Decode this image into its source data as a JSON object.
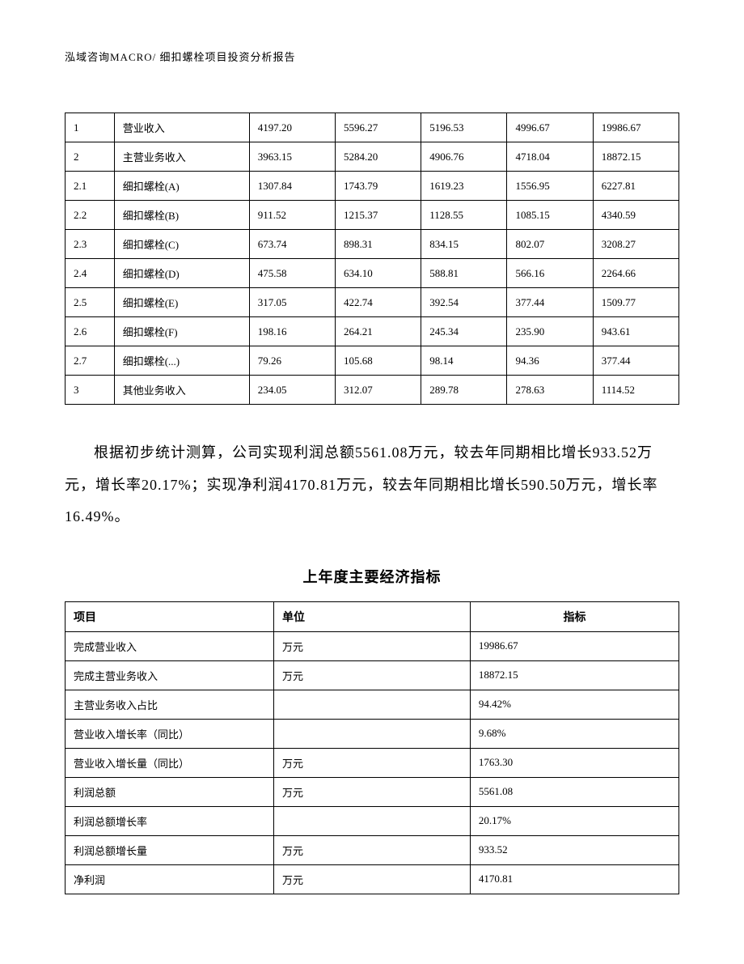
{
  "header": "泓域咨询MACRO/   细扣螺栓项目投资分析报告",
  "table1": {
    "col_widths_pct": [
      8,
      22,
      14,
      14,
      14,
      14,
      14
    ],
    "border_color": "#000000",
    "font_size": 13,
    "cell_padding": "8px 10px",
    "rows": [
      [
        "1",
        "营业收入",
        "4197.20",
        "5596.27",
        "5196.53",
        "4996.67",
        "19986.67"
      ],
      [
        "2",
        "主营业务收入",
        "3963.15",
        "5284.20",
        "4906.76",
        "4718.04",
        "18872.15"
      ],
      [
        "2.1",
        "细扣螺栓(A)",
        "1307.84",
        "1743.79",
        "1619.23",
        "1556.95",
        "6227.81"
      ],
      [
        "2.2",
        "细扣螺栓(B)",
        "911.52",
        "1215.37",
        "1128.55",
        "1085.15",
        "4340.59"
      ],
      [
        "2.3",
        "细扣螺栓(C)",
        "673.74",
        "898.31",
        "834.15",
        "802.07",
        "3208.27"
      ],
      [
        "2.4",
        "细扣螺栓(D)",
        "475.58",
        "634.10",
        "588.81",
        "566.16",
        "2264.66"
      ],
      [
        "2.5",
        "细扣螺栓(E)",
        "317.05",
        "422.74",
        "392.54",
        "377.44",
        "1509.77"
      ],
      [
        "2.6",
        "细扣螺栓(F)",
        "198.16",
        "264.21",
        "245.34",
        "235.90",
        "943.61"
      ],
      [
        "2.7",
        "细扣螺栓(...)",
        "79.26",
        "105.68",
        "98.14",
        "94.36",
        "377.44"
      ],
      [
        "3",
        "其他业务收入",
        "234.05",
        "312.07",
        "289.78",
        "278.63",
        "1114.52"
      ]
    ]
  },
  "paragraph": "根据初步统计测算，公司实现利润总额5561.08万元，较去年同期相比增长933.52万元，增长率20.17%；实现净利润4170.81万元，较去年同期相比增长590.50万元，增长率16.49%。",
  "section_title": "上年度主要经济指标",
  "table2": {
    "col_widths_pct": [
      34,
      32,
      34
    ],
    "border_color": "#000000",
    "header_font_size": 14,
    "font_size": 13,
    "cell_padding": "8px 10px",
    "headers": {
      "item": "项目",
      "unit": "单位",
      "value": "指标"
    },
    "rows": [
      {
        "item": "完成营业收入",
        "unit": "万元",
        "value": "19986.67"
      },
      {
        "item": "完成主营业务收入",
        "unit": "万元",
        "value": "18872.15"
      },
      {
        "item": "主营业务收入占比",
        "unit": "",
        "value": "94.42%"
      },
      {
        "item": "营业收入增长率（同比）",
        "unit": "",
        "value": "9.68%"
      },
      {
        "item": "营业收入增长量（同比）",
        "unit": "万元",
        "value": "1763.30"
      },
      {
        "item": "利润总额",
        "unit": "万元",
        "value": "5561.08"
      },
      {
        "item": "利润总额增长率",
        "unit": "",
        "value": "20.17%"
      },
      {
        "item": "利润总额增长量",
        "unit": "万元",
        "value": "933.52"
      },
      {
        "item": "净利润",
        "unit": "万元",
        "value": "4170.81"
      }
    ]
  },
  "colors": {
    "background": "#ffffff",
    "text": "#000000",
    "border": "#000000"
  },
  "typography": {
    "body_font": "SimSun",
    "header_font_size": 13,
    "paragraph_font_size": 18,
    "paragraph_line_height": 2.2,
    "section_title_font_size": 18,
    "section_title_weight": "bold"
  }
}
